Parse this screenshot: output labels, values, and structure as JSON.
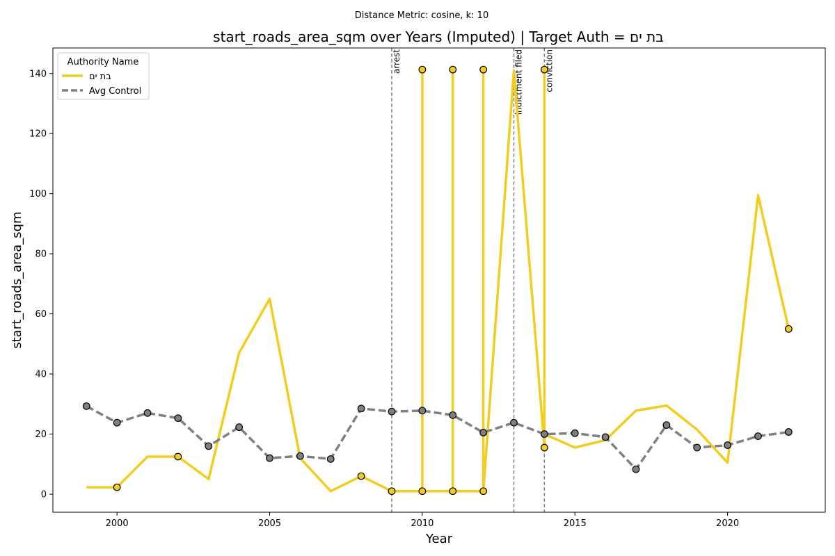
{
  "chart_data": {
    "type": "line",
    "suptitle": "Distance Metric: cosine, k: 10",
    "title": "start_roads_area_sqm over Years (Imputed) | Target Auth = בת ים",
    "xlabel": "Year",
    "ylabel": "start_roads_area_sqm",
    "xlim": [
      1997.9,
      2023.2
    ],
    "ylim": [
      -6,
      148.5
    ],
    "xticks": [
      2000,
      2005,
      2010,
      2015,
      2020
    ],
    "yticks": [
      0,
      20,
      40,
      60,
      80,
      100,
      120,
      140
    ],
    "grid": false,
    "legend": {
      "title": "Authority Name",
      "position": "top-left"
    },
    "series": [
      {
        "name": "בת ים",
        "color": "#f2cd1d",
        "style": "solid",
        "points": [
          [
            1999,
            2.3
          ],
          [
            2000,
            2.3
          ],
          [
            2001,
            12.5
          ],
          [
            2002,
            12.5
          ],
          [
            2003,
            5.0
          ],
          [
            2004,
            47.0
          ],
          [
            2005,
            65.0
          ],
          [
            2006,
            12.0
          ],
          [
            2007,
            1.0
          ],
          [
            2008,
            6.0
          ],
          [
            2009,
            1.0
          ],
          [
            2010,
            1.0
          ],
          [
            2010,
            141.3
          ],
          [
            2010,
            1.0
          ],
          [
            2011,
            1.0
          ],
          [
            2011,
            141.3
          ],
          [
            2011,
            1.0
          ],
          [
            2012,
            1.0
          ],
          [
            2012,
            141.3
          ],
          [
            2012,
            1.0
          ],
          [
            2013,
            141.0
          ],
          [
            2014,
            15.5
          ],
          [
            2014,
            141.3
          ],
          [
            2014,
            20.0
          ],
          [
            2015,
            15.5
          ],
          [
            2016,
            18.0
          ],
          [
            2017,
            27.8
          ],
          [
            2018,
            29.5
          ],
          [
            2019,
            21.5
          ],
          [
            2020,
            10.5
          ],
          [
            2021,
            99.5
          ],
          [
            2022,
            55.0
          ]
        ],
        "markers": [
          [
            2000,
            2.3
          ],
          [
            2002,
            12.5
          ],
          [
            2008,
            6.0
          ],
          [
            2009,
            1.0
          ],
          [
            2010,
            1.0
          ],
          [
            2010,
            141.3
          ],
          [
            2011,
            1.0
          ],
          [
            2011,
            141.3
          ],
          [
            2012,
            1.0
          ],
          [
            2012,
            141.3
          ],
          [
            2014,
            15.5
          ],
          [
            2014,
            141.3
          ],
          [
            2022,
            55.0
          ]
        ],
        "marker_color": "#f2cd1d"
      },
      {
        "name": "Avg Control",
        "color": "#808080",
        "style": "dashed",
        "points": [
          [
            1999,
            29.3
          ],
          [
            2000,
            23.8
          ],
          [
            2001,
            27.0
          ],
          [
            2002,
            25.3
          ],
          [
            2003,
            16.0
          ],
          [
            2004,
            22.3
          ],
          [
            2005,
            12.0
          ],
          [
            2006,
            12.7
          ],
          [
            2007,
            11.7
          ],
          [
            2008,
            28.5
          ],
          [
            2009,
            27.5
          ],
          [
            2010,
            27.8
          ],
          [
            2011,
            26.3
          ],
          [
            2012,
            20.5
          ],
          [
            2013,
            23.8
          ],
          [
            2014,
            20.0
          ],
          [
            2015,
            20.3
          ],
          [
            2016,
            19.0
          ],
          [
            2017,
            8.3
          ],
          [
            2018,
            23.0
          ],
          [
            2019,
            15.5
          ],
          [
            2020,
            16.3
          ],
          [
            2021,
            19.3
          ],
          [
            2022,
            20.7
          ]
        ],
        "marker_color": "#808080"
      }
    ],
    "events": [
      {
        "x": 2009,
        "label": "arrest"
      },
      {
        "x": 2013,
        "label": "indictment filed"
      },
      {
        "x": 2014,
        "label": "conviction"
      }
    ]
  }
}
